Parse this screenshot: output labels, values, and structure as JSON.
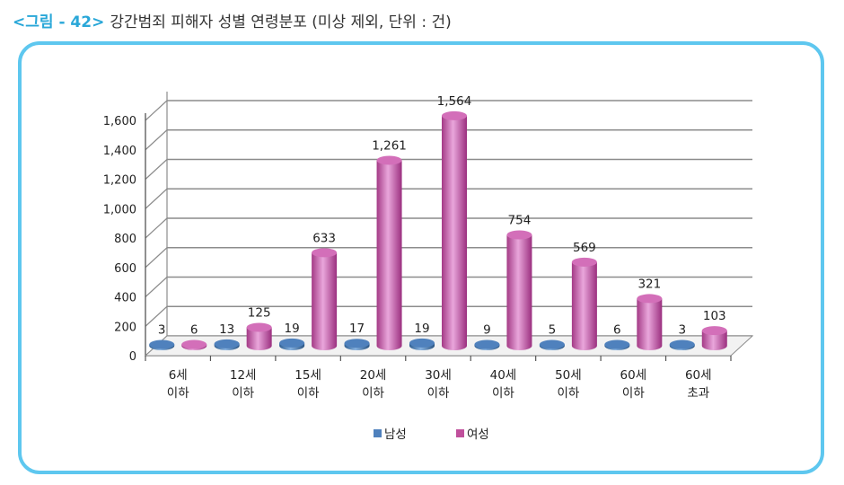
{
  "header": {
    "figure_label": "<그림 - 42>",
    "title": "강간범죄 피해자 성별 연령분포 (미상 제외, 단위 : 건)"
  },
  "chart_data": {
    "type": "bar",
    "title": "강간범죄 피해자 성별 연령분포 (미상 제외, 단위 : 건)",
    "categories": [
      [
        "6세",
        "이하"
      ],
      [
        "12세",
        "이하"
      ],
      [
        "15세",
        "이하"
      ],
      [
        "20세",
        "이하"
      ],
      [
        "30세",
        "이하"
      ],
      [
        "40세",
        "이하"
      ],
      [
        "50세",
        "이하"
      ],
      [
        "60세",
        "이하"
      ],
      [
        "60세",
        "초과"
      ]
    ],
    "series": [
      {
        "name": "남성",
        "color": "#4f81bd",
        "values": [
          3,
          13,
          19,
          17,
          19,
          9,
          5,
          6,
          3
        ]
      },
      {
        "name": "여성",
        "color": "#c0509c",
        "values": [
          6,
          125,
          633,
          1261,
          1564,
          754,
          569,
          321,
          103
        ]
      }
    ],
    "value_labels": {
      "남성": [
        "3",
        "13",
        "19",
        "17",
        "19",
        "9",
        "5",
        "6",
        "3"
      ],
      "여성": [
        "6",
        "125",
        "633",
        "1,261",
        "1,564",
        "754",
        "569",
        "321",
        "103"
      ]
    },
    "yticks": [
      "0",
      "200",
      "400",
      "600",
      "800",
      "1,000",
      "1,200",
      "1,400",
      "1,600"
    ],
    "ylim": [
      0,
      1600
    ],
    "grid": true,
    "legend_position": "bottom",
    "style": "3d-cylinder"
  }
}
